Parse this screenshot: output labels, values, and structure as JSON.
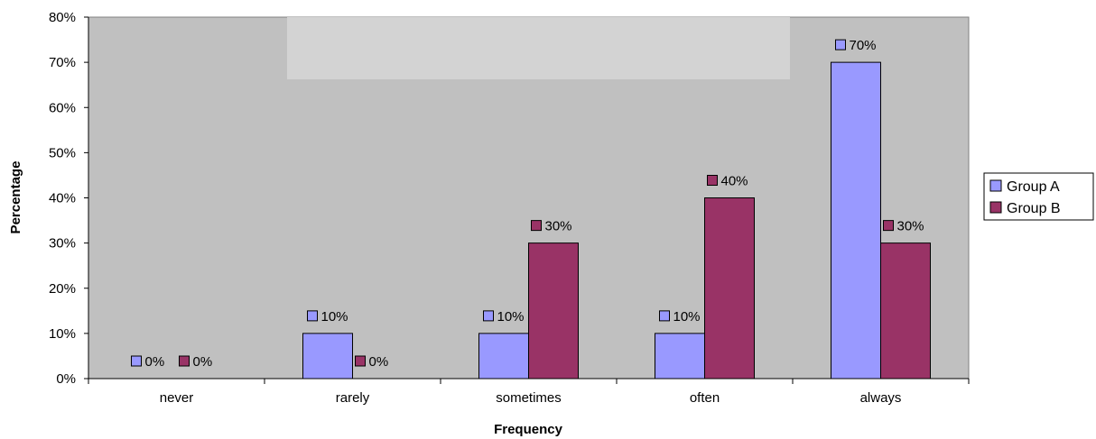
{
  "chart_data": {
    "type": "bar",
    "categories": [
      "never",
      "rarely",
      "sometimes",
      "often",
      "always"
    ],
    "series": [
      {
        "name": "Group A",
        "values": [
          0,
          10,
          10,
          10,
          70
        ],
        "color": "#9999FF"
      },
      {
        "name": "Group B",
        "values": [
          0,
          0,
          30,
          40,
          30
        ],
        "color": "#993366"
      }
    ],
    "data_labels": {
      "Group A": [
        "0%",
        "10%",
        "10%",
        "10%",
        "70%"
      ],
      "Group B": [
        "0%",
        "0%",
        "30%",
        "40%",
        "30%"
      ]
    },
    "xlabel": "Frequency",
    "ylabel": "Percentage",
    "ylim": [
      0,
      80
    ],
    "yticks": [
      "0%",
      "10%",
      "20%",
      "30%",
      "40%",
      "50%",
      "60%",
      "70%",
      "80%"
    ],
    "grid": false,
    "legend_position": "right",
    "plot_background": "#C0C0C0",
    "watermark_band": "#D3D3D3"
  }
}
